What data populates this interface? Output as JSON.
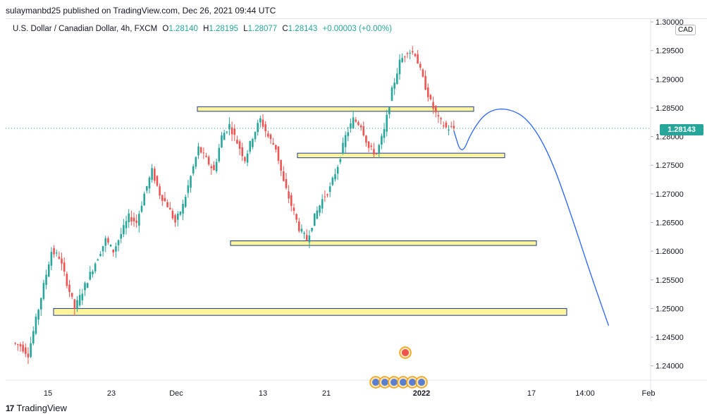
{
  "publisher_line": "sulaymanbd25 published on TradingView.com, Dec 26, 2021 09:44 UTC",
  "legend": {
    "symbol": "U.S. Dollar / Canadian Dollar, 4h, FXCM",
    "o_label": "O",
    "o_value": "1.28140",
    "h_label": "H",
    "h_value": "1.28195",
    "l_label": "L",
    "l_value": "1.28077",
    "c_label": "C",
    "c_value": "1.28143",
    "change": "+0.00003 (+0.00%)"
  },
  "currency_badge": "CAD",
  "last_price": "1.28143",
  "footer_brand": "TradingView",
  "colors": {
    "up": "#26a69a",
    "down": "#ef5350",
    "zone_fill": "#fff59d",
    "zone_border": "#1e3a8a",
    "projection": "#2962ff",
    "price_tag": "#26a69a"
  },
  "chart_data": {
    "type": "candlestick",
    "ylim": [
      1.2375,
      1.3005
    ],
    "y_ticks": [
      "1.30000",
      "1.29500",
      "1.29000",
      "1.28500",
      "1.28000",
      "1.27500",
      "1.27000",
      "1.26500",
      "1.26000",
      "1.25500",
      "1.25000",
      "1.24500",
      "1.24000"
    ],
    "x_ticks": [
      {
        "label": "15",
        "bold": false
      },
      {
        "label": "23",
        "bold": false
      },
      {
        "label": "Dec",
        "bold": false
      },
      {
        "label": "13",
        "bold": false
      },
      {
        "label": "21",
        "bold": false
      },
      {
        "label": "2022",
        "bold": true
      },
      {
        "label": "17",
        "bold": false
      },
      {
        "label": "14:00",
        "bold": false
      },
      {
        "label": "Feb",
        "bold": false
      }
    ],
    "price_path": [
      [
        0,
        1.244
      ],
      [
        3,
        1.2435
      ],
      [
        6,
        1.242
      ],
      [
        9,
        1.248
      ],
      [
        12,
        1.254
      ],
      [
        15,
        1.26
      ],
      [
        18,
        1.259
      ],
      [
        21,
        1.2545
      ],
      [
        24,
        1.25
      ],
      [
        27,
        1.253
      ],
      [
        30,
        1.256
      ],
      [
        33,
        1.259
      ],
      [
        36,
        1.262
      ],
      [
        39,
        1.26
      ],
      [
        42,
        1.263
      ],
      [
        45,
        1.266
      ],
      [
        48,
        1.265
      ],
      [
        51,
        1.27
      ],
      [
        54,
        1.274
      ],
      [
        57,
        1.27
      ],
      [
        60,
        1.268
      ],
      [
        63,
        1.265
      ],
      [
        66,
        1.268
      ],
      [
        69,
        1.273
      ],
      [
        72,
        1.278
      ],
      [
        75,
        1.276
      ],
      [
        78,
        1.274
      ],
      [
        81,
        1.28
      ],
      [
        84,
        1.282
      ],
      [
        87,
        1.279
      ],
      [
        90,
        1.276
      ],
      [
        93,
        1.28
      ],
      [
        96,
        1.283
      ],
      [
        99,
        1.28
      ],
      [
        102,
        1.278
      ],
      [
        105,
        1.272
      ],
      [
        108,
        1.268
      ],
      [
        111,
        1.264
      ],
      [
        114,
        1.262
      ],
      [
        117,
        1.266
      ],
      [
        120,
        1.269
      ],
      [
        123,
        1.271
      ],
      [
        126,
        1.275
      ],
      [
        129,
        1.28
      ],
      [
        132,
        1.283
      ],
      [
        135,
        1.282
      ],
      [
        138,
        1.278
      ],
      [
        141,
        1.277
      ],
      [
        144,
        1.281
      ],
      [
        147,
        1.288
      ],
      [
        150,
        1.293
      ],
      [
        153,
        1.295
      ],
      [
        156,
        1.2945
      ],
      [
        159,
        1.29
      ],
      [
        162,
        1.286
      ],
      [
        165,
        1.283
      ],
      [
        168,
        1.2815
      ],
      [
        171,
        1.2814
      ]
    ],
    "zones": [
      {
        "label": "zone-1",
        "x_start": "Dec 2",
        "x_end": "Jan 6",
        "y_low": 1.2844,
        "y_high": 1.2852
      },
      {
        "label": "zone-2",
        "x_start": "Dec 16",
        "x_end": "Jan 11",
        "y_low": 1.2763,
        "y_high": 1.2771
      },
      {
        "label": "zone-3",
        "x_start": "Dec 8",
        "x_end": "Jan 18",
        "y_low": 1.261,
        "y_high": 1.2618
      },
      {
        "label": "zone-4",
        "x_start": "Nov 16",
        "x_end": "Jan 21",
        "y_low": 1.2488,
        "y_high": 1.25
      }
    ],
    "projection": [
      [
        171,
        1.281
      ],
      [
        174,
        1.2766
      ],
      [
        178,
        1.281
      ],
      [
        184,
        1.2845
      ],
      [
        192,
        1.285
      ],
      [
        200,
        1.283
      ],
      [
        208,
        1.277
      ],
      [
        216,
        1.267
      ],
      [
        224,
        1.256
      ],
      [
        231,
        1.247
      ]
    ],
    "last_price": 1.28143
  }
}
